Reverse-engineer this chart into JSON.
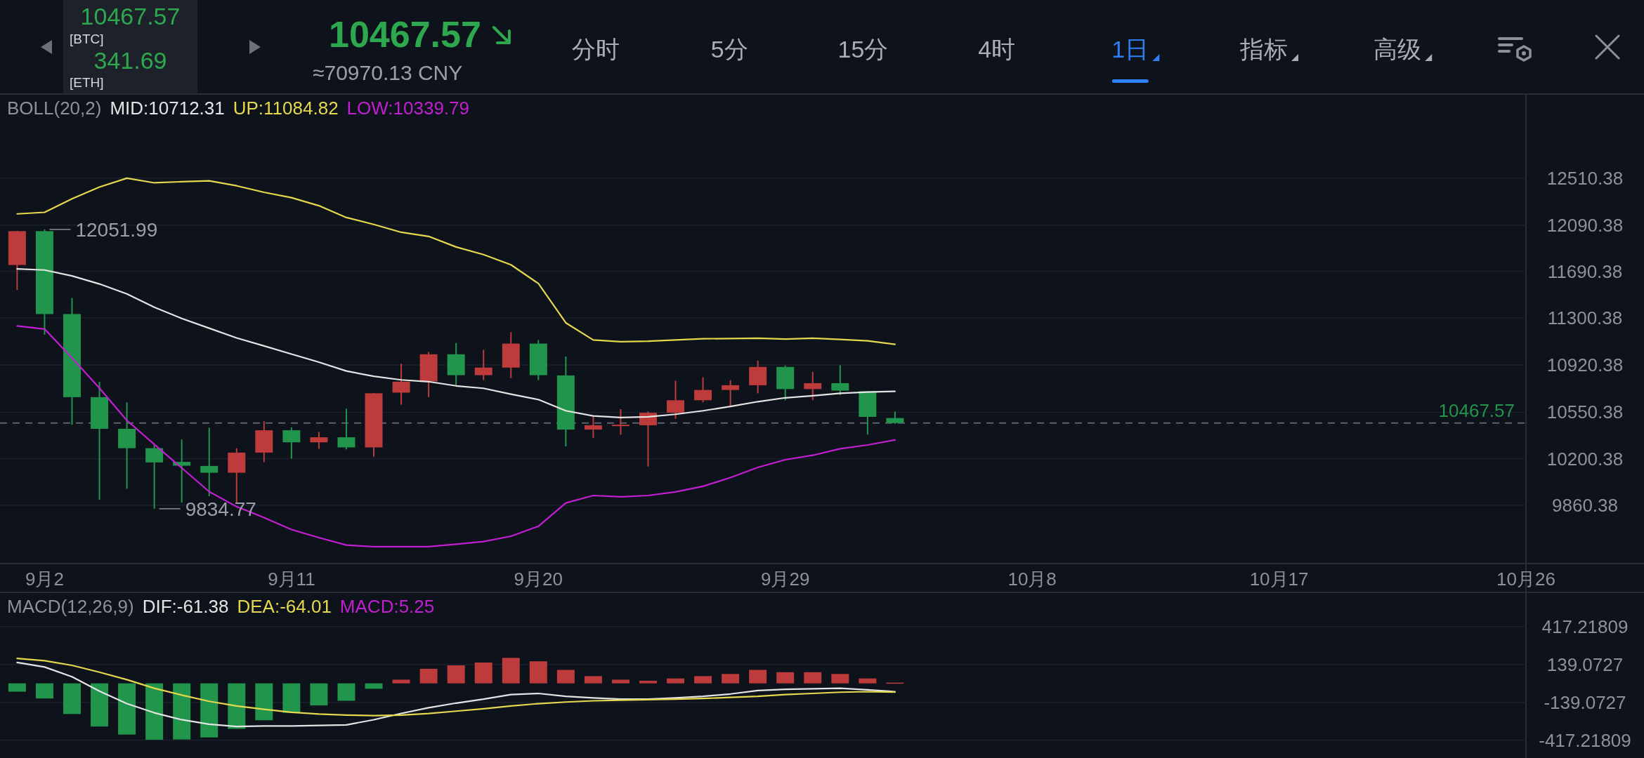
{
  "chart_data": [
    {
      "type": "other",
      "title": "10467.57",
      "subtitle": "≈70970.13 CNY",
      "color": "#2ea84f",
      "categories": [
        "分时",
        "5分",
        "15分",
        "4时",
        "1日",
        "指标",
        "高级"
      ],
      "colors": [
        "#a9aeb8",
        "#a9aeb8",
        "#a9aeb8",
        "#a9aeb8",
        "#2f7ff5",
        "#a9aeb8",
        "#a9aeb8"
      ],
      "annotations": [
        "10467.57",
        "[BTC]",
        "341.69",
        "[ETH]"
      ]
    },
    {
      "type": "candlestick",
      "legend_title": "BOLL(20,2)",
      "legend": "top left",
      "log": "y",
      "grid": "y",
      "x": [
        "--09-01",
        "--09-02",
        "--09-03",
        "--09-04",
        "--09-05",
        "--09-06",
        "--09-07",
        "--09-08",
        "--09-09",
        "--09-10",
        "--09-11",
        "--09-12",
        "--09-13",
        "--09-14",
        "--09-15",
        "--09-16",
        "--09-17",
        "--09-18",
        "--09-19",
        "--09-20",
        "--09-21",
        "--09-22",
        "--09-23",
        "--09-24",
        "--09-25",
        "--09-26",
        "--09-27",
        "--09-28",
        "--09-29",
        "--09-30",
        "--10-01",
        "--10-02",
        "--10-03"
      ],
      "ohlc": [
        [
          11744,
          12040,
          11533,
          12037
        ],
        [
          12037,
          12051.99,
          11163,
          11332
        ],
        [
          11332,
          11465,
          10455,
          10667
        ],
        [
          10667,
          10788,
          9899,
          10424
        ],
        [
          10424,
          10627,
          9979,
          10278
        ],
        [
          10278,
          10302,
          9834.77,
          10172
        ],
        [
          10176,
          10344,
          9878,
          10148
        ],
        [
          10146,
          10433,
          9925,
          10096
        ],
        [
          10096,
          10278,
          9871,
          10245
        ],
        [
          10245,
          10484,
          10174,
          10413
        ],
        [
          10413,
          10435,
          10200,
          10322
        ],
        [
          10322,
          10400,
          10273,
          10360
        ],
        [
          10360,
          10578,
          10269,
          10284
        ],
        [
          10284,
          10700,
          10214,
          10697
        ],
        [
          10702,
          10930,
          10609,
          10788
        ],
        [
          10790,
          11024,
          10667,
          11005
        ],
        [
          11005,
          11096,
          10760,
          10839
        ],
        [
          10839,
          11041,
          10800,
          10899
        ],
        [
          10899,
          11183,
          10816,
          11091
        ],
        [
          11091,
          11120,
          10800,
          10839
        ],
        [
          10837,
          10988,
          10291,
          10418
        ],
        [
          10418,
          10524,
          10356,
          10451
        ],
        [
          10446,
          10574,
          10380,
          10455
        ],
        [
          10451,
          10555,
          10142,
          10546
        ],
        [
          10546,
          10795,
          10500,
          10643
        ],
        [
          10643,
          10823,
          10627,
          10723
        ],
        [
          10723,
          10799,
          10597,
          10760
        ],
        [
          10760,
          10954,
          10697,
          10904
        ],
        [
          10904,
          10916,
          10643,
          10730
        ],
        [
          10730,
          10865,
          10643,
          10776
        ],
        [
          10776,
          10918,
          10683,
          10718
        ],
        [
          10713,
          10716,
          10380,
          10515
        ],
        [
          10506,
          10555,
          10462,
          10467.57
        ]
      ],
      "colors": [
        "#bd3b3b",
        "#21954b",
        "#21954b",
        "#21954b",
        "#21954b",
        "#21954b",
        "#21954b",
        "#21954b",
        "#bd3b3b",
        "#bd3b3b",
        "#21954b",
        "#bd3b3b",
        "#21954b",
        "#bd3b3b",
        "#bd3b3b",
        "#bd3b3b",
        "#21954b",
        "#bd3b3b",
        "#bd3b3b",
        "#21954b",
        "#21954b",
        "#bd3b3b",
        "#bd3b3b",
        "#bd3b3b",
        "#bd3b3b",
        "#bd3b3b",
        "#bd3b3b",
        "#bd3b3b",
        "#21954b",
        "#bd3b3b",
        "#21954b",
        "#21954b",
        "#21954b"
      ],
      "series": [
        {
          "name": "MID:10712.31",
          "type": "line",
          "color": "#e4e4e4",
          "values": [
            11711,
            11701,
            11651,
            11583,
            11499,
            11389,
            11296,
            11216,
            11137,
            11072,
            11007,
            10942,
            10872,
            10830,
            10802,
            10788,
            10755,
            10736,
            10690,
            10648,
            10562,
            10522,
            10510,
            10515,
            10535,
            10562,
            10595,
            10632,
            10662,
            10678,
            10697,
            10706,
            10712.31
          ]
        },
        {
          "name": "UP:11084.82",
          "type": "line",
          "color": "#e6d84e",
          "values": [
            12189,
            12203,
            12323,
            12430,
            12510,
            12468,
            12478,
            12486,
            12441,
            12382,
            12334,
            12262,
            12157,
            12096,
            12027,
            11991,
            11899,
            11833,
            11746,
            11587,
            11260,
            11120,
            11106,
            11110,
            11120,
            11130,
            11132,
            11135,
            11127,
            11135,
            11125,
            11113,
            11084.82
          ]
        },
        {
          "name": "LOW:10339.79",
          "type": "line",
          "color": "#c21fd2",
          "values": [
            11235,
            11209,
            10976,
            10737,
            10488,
            10307,
            10131,
            9958,
            9850,
            9772,
            9687,
            9630,
            9578,
            9567,
            9567,
            9567,
            9584,
            9603,
            9640,
            9710,
            9876,
            9930,
            9921,
            9930,
            9956,
            9997,
            10060,
            10135,
            10192,
            10225,
            10274,
            10302,
            10339.79
          ]
        }
      ],
      "xlim": [
        "--08-31T09:00",
        "--10-26"
      ],
      "xticks": [
        {
          "value": "--09-02",
          "label": "9月2"
        },
        {
          "value": "--09-11",
          "label": "9月11"
        },
        {
          "value": "--09-20",
          "label": "9月20"
        },
        {
          "value": "--09-29",
          "label": "9月29"
        },
        {
          "value": "--10-08",
          "label": "10月8"
        },
        {
          "value": "--10-17",
          "label": "10月17"
        },
        {
          "value": "--10-26",
          "label": "10月26"
        }
      ],
      "ylim": [
        9450,
        13300
      ],
      "yticks": [
        9860.38,
        10200.38,
        10550.38,
        10920.38,
        11300.38,
        11690.38,
        12090.38,
        12510.38
      ],
      "ref_lines": [
        {
          "axis": "y",
          "value": 10467.57,
          "label": "10467.57",
          "color": "#5b616d",
          "line_style": "dashed"
        }
      ],
      "annotations": [
        {
          "text": "12051.99",
          "x": "--09-02",
          "y": 12051.99
        },
        {
          "text": "9834.77",
          "x": "--09-06",
          "y": 9834.77
        }
      ]
    },
    {
      "type": "bar",
      "legend_title": "MACD(12,26,9)",
      "legend": "top left",
      "grid": "y",
      "tick_labels": "y",
      "x": [
        "--09-01",
        "--09-02",
        "--09-03",
        "--09-04",
        "--09-05",
        "--09-06",
        "--09-07",
        "--09-08",
        "--09-09",
        "--09-10",
        "--09-11",
        "--09-12",
        "--09-13",
        "--09-14",
        "--09-15",
        "--09-16",
        "--09-17",
        "--09-18",
        "--09-19",
        "--09-20",
        "--09-21",
        "--09-22",
        "--09-23",
        "--09-24",
        "--09-25",
        "--09-26",
        "--09-27",
        "--09-28",
        "--09-29",
        "--09-30",
        "--10-01",
        "--10-02",
        "--10-03"
      ],
      "series": [
        {
          "name": "DIF:-61.38",
          "type": "line",
          "color": "#e4e4e4",
          "values": [
            153,
            120,
            48,
            -57,
            -149,
            -216,
            -267,
            -300,
            -317,
            -313,
            -313,
            -309,
            -305,
            -267,
            -221,
            -179,
            -145,
            -116,
            -82,
            -74,
            -95,
            -107,
            -116,
            -116,
            -107,
            -95,
            -78,
            -53,
            -44,
            -40,
            -36,
            -48,
            -61.38
          ]
        },
        {
          "name": "DEA:-64.01",
          "type": "line",
          "color": "#e6d84e",
          "values": [
            183,
            166,
            132,
            82,
            27,
            -36,
            -86,
            -132,
            -166,
            -191,
            -212,
            -225,
            -233,
            -237,
            -233,
            -221,
            -204,
            -187,
            -166,
            -149,
            -137,
            -128,
            -124,
            -120,
            -116,
            -111,
            -103,
            -95,
            -82,
            -74,
            -65,
            -61,
            -64.01
          ]
        },
        {
          "name": "MACD:5.25",
          "type": "bar",
          "color": "#c21fd2",
          "colors": [
            "#21954b",
            "#21954b",
            "#21954b",
            "#21954b",
            "#21954b",
            "#21954b",
            "#21954b",
            "#21954b",
            "#21954b",
            "#21954b",
            "#21954b",
            "#21954b",
            "#21954b",
            "#21954b",
            "#bd3b3b",
            "#bd3b3b",
            "#bd3b3b",
            "#bd3b3b",
            "#bd3b3b",
            "#bd3b3b",
            "#bd3b3b",
            "#bd3b3b",
            "#bd3b3b",
            "#bd3b3b",
            "#bd3b3b",
            "#bd3b3b",
            "#bd3b3b",
            "#bd3b3b",
            "#bd3b3b",
            "#bd3b3b",
            "#bd3b3b",
            "#bd3b3b",
            "#bd3b3b"
          ],
          "values": [
            -61,
            -111,
            -225,
            -317,
            -376,
            -414,
            -412,
            -397,
            -334,
            -271,
            -216,
            -162,
            -128,
            -40,
            27,
            107,
            132,
            153,
            187,
            162,
            99,
            53,
            27,
            19,
            36,
            53,
            69,
            99,
            82,
            82,
            69,
            36,
            5.25
          ]
        }
      ],
      "xlim": [
        "--08-31T09:00",
        "--10-26"
      ],
      "ylim": [
        -548,
        668
      ],
      "yticks": [
        -417.21809,
        -139.0727,
        139.0727,
        417.21809
      ]
    }
  ]
}
